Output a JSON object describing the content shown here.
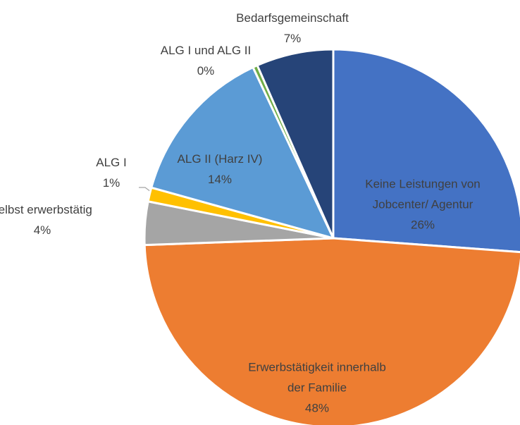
{
  "chart_data": {
    "type": "pie",
    "categories": [
      "Keine Leistungen von Jobcenter/ Agentur",
      "Erwerbstätigkeit innerhalb der Familie",
      "selbst erwerbstätig",
      "ALG I",
      "ALG II (Harz IV)",
      "ALG I und ALG II",
      "Bedarfsgemeinschaft"
    ],
    "values": [
      26.2,
      48.3,
      3.7,
      1.2,
      13.7,
      0.4,
      6.6
    ],
    "value_labels": [
      "26%",
      "48%",
      "4%",
      "1%",
      "14%",
      "0%",
      "7%"
    ],
    "colors": [
      "#4472c4",
      "#ed7d31",
      "#a5a5a5",
      "#ffc000",
      "#5b9bd5",
      "#70ad47",
      "#264478"
    ]
  }
}
